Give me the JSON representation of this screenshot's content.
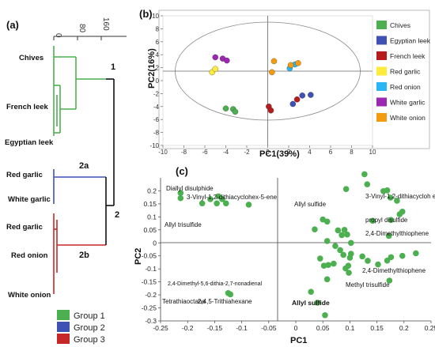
{
  "chart_data": [
    {
      "type": "dendrogram",
      "panel_label": "(a)",
      "axis_ticks": [
        "0",
        "80",
        "160"
      ],
      "axis_range": [
        0,
        160
      ],
      "leaves": [
        "Chives",
        "French leek",
        "Egyptian leek",
        "Red garlic",
        "White garlic",
        "Red garlic",
        "Red onion",
        "White onion"
      ],
      "cluster_labels": [
        "1",
        "2",
        "2a",
        "2b"
      ],
      "legend": [
        {
          "name": "Group 1",
          "color": "#4CAF50"
        },
        {
          "name": "Group 2",
          "color": "#3F51B5"
        },
        {
          "name": "Group 3",
          "color": "#C62828"
        }
      ]
    },
    {
      "type": "scatter",
      "panel_label": "(b)",
      "xlabel": "PC1(39%)",
      "ylabel": "PC2(16%)",
      "xlim": [
        -10,
        10
      ],
      "ylim": [
        -10,
        10
      ],
      "xticks": [
        "-10",
        "-8",
        "-6",
        "-4",
        "-2",
        "0",
        "2",
        "4",
        "6",
        "8",
        "10"
      ],
      "yticks": [
        "10",
        "8",
        "6",
        "4",
        "2",
        "0",
        "-2",
        "-4",
        "-6",
        "-8",
        "-10"
      ],
      "legend_position": "right",
      "series": [
        {
          "name": "Chives",
          "color": "#4CAF50",
          "points": [
            [
              -4.0,
              -4.3
            ],
            [
              -3.3,
              -4.4
            ],
            [
              -3.1,
              -4.8
            ]
          ]
        },
        {
          "name": "Egyptian leek",
          "color": "#3F51B5",
          "points": [
            [
              2.4,
              -3.6
            ],
            [
              3.3,
              -2.3
            ],
            [
              4.1,
              -2.2
            ]
          ]
        },
        {
          "name": "French leek",
          "color": "#B71C1C",
          "points": [
            [
              0.1,
              -4.0
            ],
            [
              0.3,
              -4.6
            ],
            [
              2.8,
              -2.9
            ]
          ]
        },
        {
          "name": "Red garlic",
          "color": "#FFEB3B",
          "points": [
            [
              -5.3,
              1.3
            ],
            [
              -5.0,
              1.8
            ]
          ]
        },
        {
          "name": "Red onion",
          "color": "#29B6F6",
          "points": [
            [
              2.1,
              1.9
            ],
            [
              2.6,
              2.5
            ]
          ]
        },
        {
          "name": "White garlic",
          "color": "#9C27B0",
          "points": [
            [
              -5.0,
              3.6
            ],
            [
              -4.3,
              3.4
            ],
            [
              -3.9,
              3.1
            ]
          ]
        },
        {
          "name": "White onion",
          "color": "#F39C12",
          "points": [
            [
              0.4,
              1.3
            ],
            [
              0.6,
              3.0
            ],
            [
              2.2,
              2.4
            ],
            [
              2.9,
              2.7
            ]
          ]
        }
      ]
    },
    {
      "type": "scatter",
      "panel_label": "(c)",
      "xlabel": "PC1",
      "ylabel": "PC2",
      "xlim": [
        -0.25,
        0.25
      ],
      "ylim": [
        -0.3,
        0.25
      ],
      "xticks": [
        "-0.25",
        "-0.2",
        "-0.15",
        "-0.1",
        "-0.05",
        "0",
        "0.05",
        "0.1",
        "0.15",
        "0.2",
        "0.25"
      ],
      "yticks": [
        "0.2",
        "0.15",
        "0.1",
        "0.05",
        "0",
        "-0.05",
        "-0.1",
        "-0.15",
        "-0.2",
        "-0.25",
        "-0.3"
      ],
      "point_color": "#4CAF50",
      "points": [
        [
          -0.213,
          0.192
        ],
        [
          -0.213,
          0.172
        ],
        [
          -0.173,
          0.152
        ],
        [
          -0.158,
          0.168
        ],
        [
          -0.146,
          0.152
        ],
        [
          -0.143,
          0.179
        ],
        [
          -0.136,
          0.168
        ],
        [
          -0.129,
          0.152
        ],
        [
          -0.087,
          0.147
        ],
        [
          -0.125,
          -0.193
        ],
        [
          -0.121,
          -0.198
        ],
        [
          0.127,
          0.264
        ],
        [
          0.132,
          0.225
        ],
        [
          0.093,
          0.207
        ],
        [
          0.162,
          0.199
        ],
        [
          0.169,
          0.202
        ],
        [
          0.175,
          0.174
        ],
        [
          0.187,
          0.162
        ],
        [
          0.192,
          0.11
        ],
        [
          0.197,
          0.12
        ],
        [
          0.176,
          0.088
        ],
        [
          0.172,
          0.027
        ],
        [
          0.142,
          0.085
        ],
        [
          0.035,
          0.052
        ],
        [
          0.05,
          0.09
        ],
        [
          0.058,
          0.082
        ],
        [
          0.078,
          0.048
        ],
        [
          0.085,
          0.03
        ],
        [
          0.09,
          0.05
        ],
        [
          0.095,
          0.032
        ],
        [
          0.102,
          0.0
        ],
        [
          0.058,
          0.007
        ],
        [
          0.073,
          -0.012
        ],
        [
          0.082,
          -0.028
        ],
        [
          0.088,
          -0.046
        ],
        [
          0.1,
          -0.057
        ],
        [
          0.045,
          -0.06
        ],
        [
          0.06,
          -0.085
        ],
        [
          0.052,
          -0.088
        ],
        [
          0.07,
          -0.08
        ],
        [
          0.092,
          -0.098
        ],
        [
          0.097,
          -0.088
        ],
        [
          0.102,
          -0.042
        ],
        [
          0.123,
          -0.052
        ],
        [
          0.133,
          -0.069
        ],
        [
          0.152,
          -0.083
        ],
        [
          0.169,
          -0.068
        ],
        [
          0.176,
          -0.055
        ],
        [
          0.197,
          -0.05
        ],
        [
          0.222,
          -0.04
        ],
        [
          0.058,
          -0.14
        ],
        [
          0.098,
          -0.115
        ],
        [
          0.173,
          -0.145
        ],
        [
          0.04,
          -0.23
        ],
        [
          0.028,
          -0.188
        ],
        [
          0.054,
          -0.278
        ]
      ],
      "annotations": [
        "Diallyl disulphide",
        "3-Vinyl-1,2-dithiacyclohex-5-ene",
        "Allyl trisulfide",
        "2,4-Dimethyl-5,6-dithia-2,7-nonadienal",
        "Tetrathiaoctane",
        "2,4,5-Trithiahexane",
        "Allyl sulfide",
        "3-Vinyl-1,2-dithiacycloh ex-5-ene",
        "propyl disulfide",
        "2,4-Dimethylthiophene",
        "2,4-Dimethylthiophene",
        "Methyl trisulfide",
        "Allyl sulfide"
      ]
    }
  ]
}
